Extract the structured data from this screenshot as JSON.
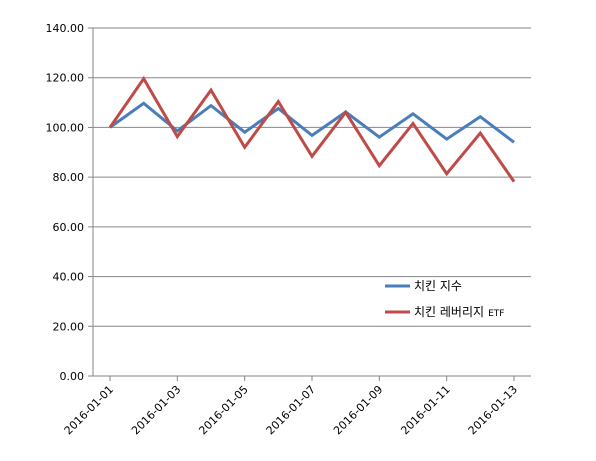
{
  "chart_data": {
    "type": "line",
    "title": "",
    "xlabel": "",
    "ylabel": "",
    "x": [
      "2016-01-01",
      "2016-01-02",
      "2016-01-03",
      "2016-01-04",
      "2016-01-05",
      "2016-01-06",
      "2016-01-07",
      "2016-01-08",
      "2016-01-09",
      "2016-01-10",
      "2016-01-11",
      "2016-01-12",
      "2016-01-13"
    ],
    "x_tick_labels": [
      "2016-01-01",
      "2016-01-03",
      "2016-01-05",
      "2016-01-07",
      "2016-01-09",
      "2016-01-11",
      "2016-01-13"
    ],
    "ylim": [
      0,
      140
    ],
    "y_ticks": [
      "0.00",
      "20.00",
      "40.00",
      "60.00",
      "80.00",
      "100.00",
      "120.00",
      "140.00"
    ],
    "grid": true,
    "legend_position": "right-lower-middle",
    "series": [
      {
        "name": "치킨 지수",
        "color": "#4a7ebb",
        "values": [
          100.0,
          109.7,
          98.6,
          108.8,
          98.1,
          107.6,
          96.8,
          106.2,
          96.1,
          105.5,
          95.3,
          104.3,
          94.0
        ]
      },
      {
        "name": "치킨 레버리지",
        "name_suffix": "ETF",
        "color": "#be4b48",
        "values": [
          100.0,
          119.6,
          96.3,
          115.0,
          92.0,
          110.4,
          88.4,
          106.1,
          84.6,
          101.6,
          81.4,
          97.7,
          78.2
        ]
      }
    ]
  }
}
